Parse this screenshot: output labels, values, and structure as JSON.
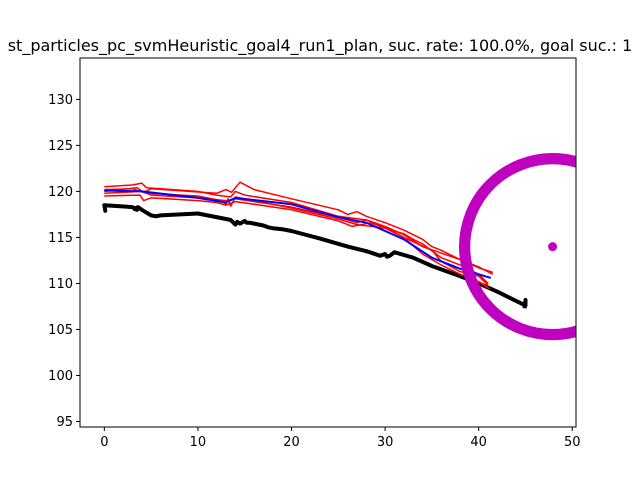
{
  "chart_data": {
    "type": "line",
    "title": "st_particles_pc_svmHeuristic_goal4_run1_plan, suc. rate: 100.0%, goal suc.: 1",
    "xlabel": "",
    "ylabel": "",
    "xlim": [
      -2.6,
      50.4
    ],
    "ylim": [
      94.4,
      134.5
    ],
    "x_ticks": [
      0,
      10,
      20,
      30,
      40,
      50
    ],
    "y_ticks": [
      95,
      100,
      105,
      110,
      115,
      120,
      125,
      130
    ],
    "grid": false,
    "colors": {
      "actual_path": "#000000",
      "particles": "#ff0000",
      "mean_plan": "#0000ff",
      "goal": "#bf00bf"
    },
    "goal": {
      "center": [
        47.9,
        114.0
      ],
      "marker": "circle",
      "ring_radius": [
        8.8,
        10.0
      ]
    },
    "series": [
      {
        "role": "actual_path",
        "x": [
          0.0,
          0.1,
          0.0,
          3.0,
          3.5,
          3.2,
          3.6,
          4.0,
          4.5,
          5.0,
          5.5,
          6.0,
          10.0,
          13.0,
          13.5,
          14.0,
          14.2,
          14.5,
          15.0,
          15.2,
          15.5,
          16.0,
          17.0,
          17.5,
          18.0,
          19.0,
          20.0,
          23.0,
          26.0,
          28.0,
          29.5,
          30.0,
          30.2,
          30.5,
          31.0,
          33.0,
          35.0,
          38.0,
          40.0,
          42.0,
          43.0,
          44.0,
          45.0,
          45.0,
          44.9
        ],
        "y": [
          118.5,
          117.9,
          118.5,
          118.3,
          118.0,
          118.1,
          118.3,
          118.0,
          117.7,
          117.4,
          117.3,
          117.4,
          117.6,
          117.0,
          116.9,
          116.4,
          116.7,
          116.5,
          116.8,
          116.6,
          116.6,
          116.5,
          116.3,
          116.1,
          116.0,
          115.9,
          115.7,
          114.9,
          114.0,
          113.5,
          113.0,
          113.2,
          112.9,
          113.0,
          113.4,
          112.8,
          111.9,
          110.8,
          110.0,
          109.1,
          108.6,
          108.1,
          107.6,
          108.2,
          107.3
        ]
      },
      {
        "role": "particle",
        "x": [
          0.0,
          3.0,
          4.0,
          4.5,
          10.0,
          12.0,
          13.5,
          14.0,
          15.0,
          20.0,
          25.0,
          28.0,
          30.0,
          32.0,
          34.0,
          36.0,
          38.0,
          40.0,
          41.5
        ],
        "y": [
          120.5,
          120.7,
          120.9,
          120.4,
          120.0,
          119.6,
          119.4,
          120.0,
          119.6,
          118.8,
          117.3,
          116.9,
          116.2,
          115.3,
          114.0,
          113.3,
          112.6,
          111.7,
          111.2
        ]
      },
      {
        "role": "particle",
        "x": [
          0.0,
          3.5,
          4.2,
          5.0,
          12.0,
          13.0,
          13.6,
          14.5,
          16.0,
          20.0,
          25.0,
          26.0,
          27.0,
          28.0,
          30.0,
          32.0,
          34.0,
          35.0,
          36.0,
          38.0,
          40.0,
          41.5
        ],
        "y": [
          120.0,
          120.4,
          119.9,
          120.3,
          119.8,
          120.2,
          119.9,
          121.0,
          120.2,
          119.2,
          118.0,
          117.5,
          117.8,
          117.3,
          116.6,
          115.8,
          114.8,
          114.0,
          113.6,
          112.6,
          111.8,
          111.0
        ]
      },
      {
        "role": "particle",
        "x": [
          0.0,
          3.8,
          4.2,
          5.0,
          10.0,
          12.0,
          13.0,
          14.0,
          16.0,
          20.0,
          25.0,
          26.5,
          28.5,
          30.0,
          32.0,
          33.0,
          34.0,
          36.0,
          38.0,
          40.0,
          41.0
        ],
        "y": [
          119.5,
          119.6,
          119.0,
          119.3,
          119.0,
          118.8,
          118.5,
          118.9,
          118.6,
          118.0,
          116.8,
          116.2,
          116.6,
          116.0,
          115.4,
          114.8,
          114.3,
          112.8,
          112.0,
          111.0,
          110.0
        ]
      },
      {
        "role": "particle",
        "x": [
          0.0,
          3.0,
          4.5,
          10.0,
          12.5,
          13.0,
          13.2,
          13.5,
          14.0,
          16.0,
          20.0,
          25.0,
          27.0,
          30.0,
          32.0,
          34.0,
          36.0,
          38.0,
          40.0,
          41.2
        ],
        "y": [
          120.2,
          120.3,
          119.8,
          119.5,
          119.0,
          118.6,
          119.2,
          118.4,
          119.4,
          119.0,
          118.2,
          117.0,
          116.4,
          116.0,
          115.0,
          113.2,
          112.0,
          111.0,
          110.2,
          109.4
        ]
      },
      {
        "role": "particle",
        "x": [
          0.0,
          4.0,
          5.0,
          10.0,
          13.0,
          14.0,
          16.0,
          20.0,
          25.0,
          27.0,
          28.0,
          30.0,
          32.0,
          33.5,
          35.0,
          36.0,
          38.0,
          40.0,
          41.0
        ],
        "y": [
          119.8,
          120.0,
          119.6,
          119.3,
          119.0,
          119.2,
          118.9,
          118.3,
          117.2,
          116.6,
          116.9,
          116.1,
          115.0,
          114.3,
          113.6,
          112.4,
          111.3,
          110.8,
          109.8
        ]
      },
      {
        "role": "mean_plan",
        "x": [
          0.0,
          4.0,
          10.0,
          13.0,
          14.0,
          20.0,
          25.0,
          28.0,
          32.0,
          35.0,
          38.0,
          41.3
        ],
        "y": [
          120.1,
          120.0,
          119.3,
          118.8,
          119.3,
          118.6,
          117.2,
          116.6,
          114.8,
          112.8,
          111.6,
          110.6
        ]
      }
    ]
  }
}
